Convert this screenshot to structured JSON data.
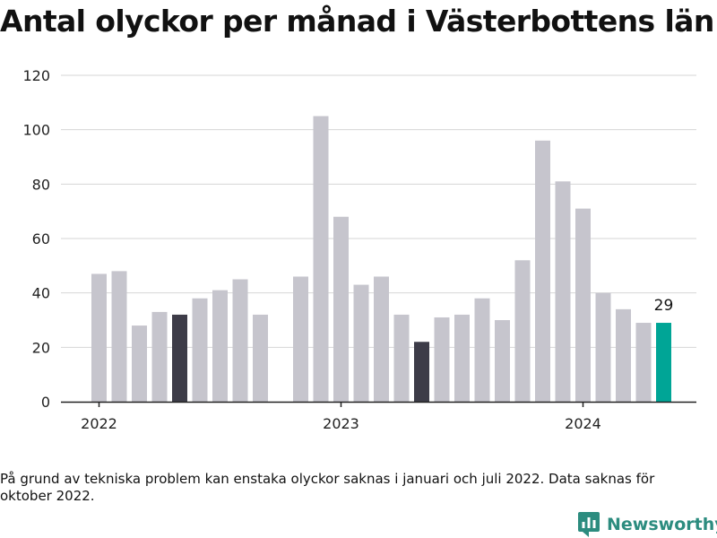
{
  "title": "Antal olyckor per månad i Västerbottens län",
  "note": "På grund av tekniska problem kan enstaka olyckor saknas i januari och juli 2022. Data saknas för oktober 2022.",
  "brand": {
    "name": "Newsworthy",
    "icon": "newsworthy-logo-icon",
    "color": "#2c8c7f"
  },
  "colors": {
    "default": "#c6c5cd",
    "dark": "#3d3c48",
    "highlight": "#00a596",
    "grid": "#d6d6d6",
    "axis": "#222222"
  },
  "chart_data": {
    "type": "bar",
    "title": "Antal olyckor per månad i Västerbottens län",
    "xlabel": "",
    "ylabel": "",
    "ylim": [
      0,
      120
    ],
    "yticks": [
      0,
      20,
      40,
      60,
      80,
      100,
      120
    ],
    "xtick_labels": [
      {
        "label": "2022",
        "at": "2022-01"
      },
      {
        "label": "2023",
        "at": "2023-01"
      },
      {
        "label": "2024",
        "at": "2024-01"
      }
    ],
    "grid": true,
    "categories": [
      "2022-01",
      "2022-02",
      "2022-03",
      "2022-04",
      "2022-05",
      "2022-06",
      "2022-07",
      "2022-08",
      "2022-09",
      "2022-10",
      "2022-11",
      "2022-12",
      "2023-01",
      "2023-02",
      "2023-03",
      "2023-04",
      "2023-05",
      "2023-06",
      "2023-07",
      "2023-08",
      "2023-09",
      "2023-10",
      "2023-11",
      "2023-12",
      "2024-01",
      "2024-02",
      "2024-03",
      "2024-04",
      "2024-05",
      "2024-06"
    ],
    "values": [
      47,
      48,
      28,
      33,
      32,
      38,
      41,
      45,
      32,
      null,
      46,
      105,
      68,
      43,
      46,
      32,
      22,
      31,
      32,
      38,
      30,
      52,
      96,
      81,
      71,
      40,
      34,
      29,
      29,
      null
    ],
    "bar_colors": [
      "default",
      "default",
      "default",
      "default",
      "dark",
      "default",
      "default",
      "default",
      "default",
      "default",
      "default",
      "default",
      "default",
      "default",
      "default",
      "default",
      "dark",
      "default",
      "default",
      "default",
      "default",
      "default",
      "default",
      "default",
      "default",
      "default",
      "default",
      "default",
      "highlight",
      "default"
    ],
    "annotations": [
      {
        "at": "2024-05",
        "text": "29"
      }
    ]
  }
}
